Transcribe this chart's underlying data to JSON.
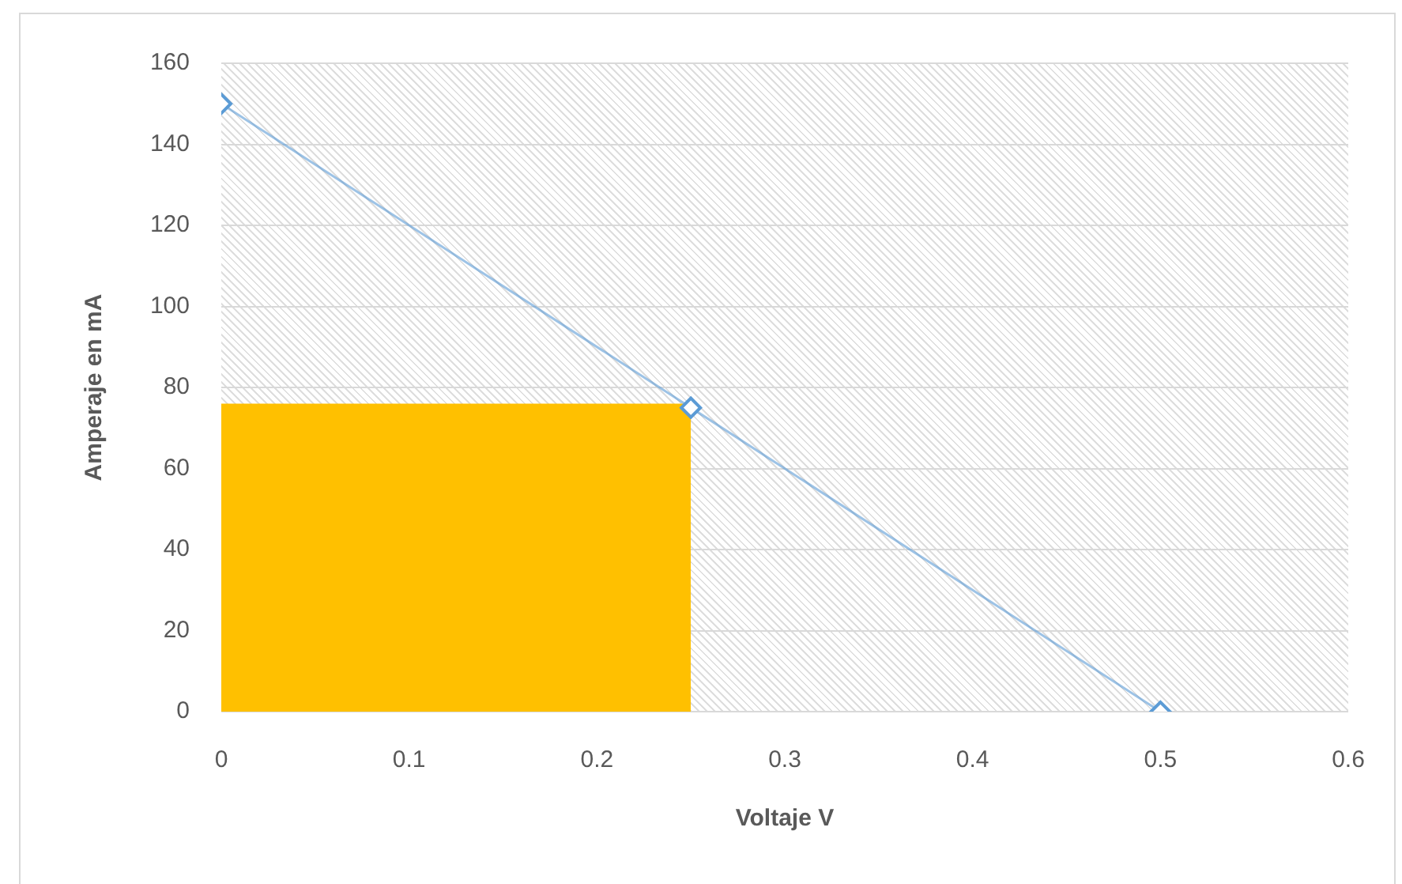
{
  "chart_data": {
    "type": "line",
    "xlabel": "Voltaje V",
    "ylabel": "Amperaje en mA",
    "xlim": [
      0,
      0.6
    ],
    "xticks": [
      0,
      0.1,
      0.2,
      0.3,
      0.4,
      0.5,
      0.6
    ],
    "ylim": [
      0,
      160
    ],
    "yticks": [
      0,
      20,
      40,
      60,
      80,
      100,
      120,
      140,
      160
    ],
    "grid": "y",
    "legend": false,
    "line_style": "solid",
    "series": [
      {
        "color": "#5b9bd5",
        "marker": "diamond",
        "x": [
          0,
          0.25,
          0.5
        ],
        "values": [
          150,
          75,
          0
        ]
      },
      {
        "type": "area",
        "color": "#ffc000",
        "x": [
          0,
          0.25
        ],
        "values": [
          76,
          76
        ]
      }
    ]
  }
}
